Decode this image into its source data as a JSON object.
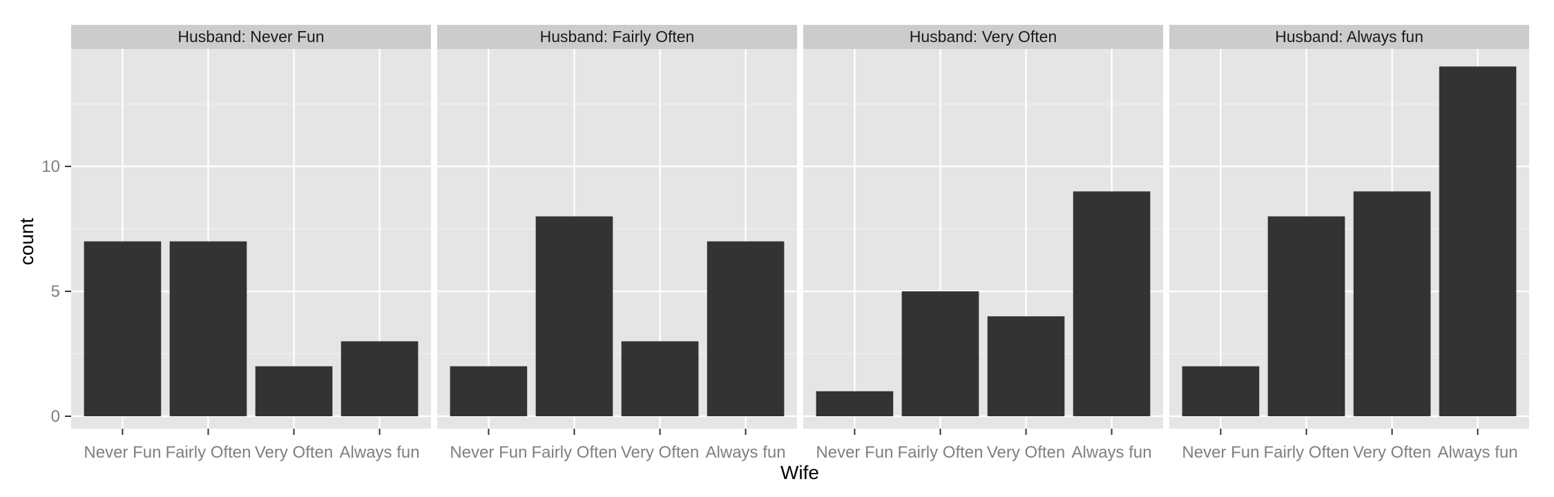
{
  "chart_data": {
    "type": "bar",
    "xlabel": "Wife",
    "ylabel": "count",
    "ylim": [
      0,
      14.7
    ],
    "yticks": [
      0,
      5,
      10
    ],
    "categories": [
      "Never Fun",
      "Fairly Often",
      "Very Often",
      "Always fun"
    ],
    "facets": [
      {
        "label": "Husband: Never Fun",
        "values": [
          7,
          7,
          2,
          3
        ]
      },
      {
        "label": "Husband: Fairly Often",
        "values": [
          2,
          8,
          3,
          7
        ]
      },
      {
        "label": "Husband: Very Often",
        "values": [
          1,
          5,
          4,
          9
        ]
      },
      {
        "label": "Husband: Always fun",
        "values": [
          2,
          8,
          9,
          14
        ]
      }
    ],
    "colors": {
      "bar": "#333333",
      "panel": "#e5e5e5",
      "strip": "#cccccc",
      "grid": "#ffffff"
    },
    "grid": true,
    "legend": "none"
  }
}
